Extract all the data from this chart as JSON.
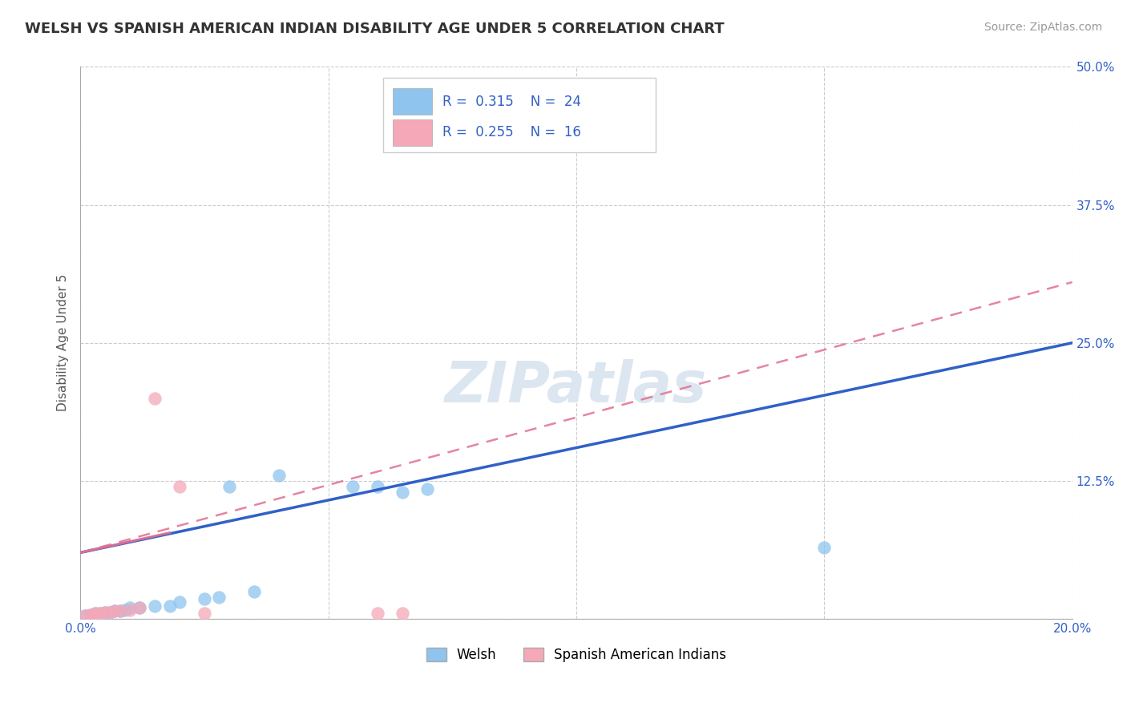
{
  "title": "WELSH VS SPANISH AMERICAN INDIAN DISABILITY AGE UNDER 5 CORRELATION CHART",
  "source": "Source: ZipAtlas.com",
  "ylabel_label": "Disability Age Under 5",
  "xlim": [
    0.0,
    0.2
  ],
  "ylim": [
    0.0,
    0.5
  ],
  "xticks": [
    0.0,
    0.05,
    0.1,
    0.15,
    0.2
  ],
  "xtick_labels": [
    "0.0%",
    "",
    "",
    "",
    "20.0%"
  ],
  "ytick_positions": [
    0.0,
    0.125,
    0.25,
    0.375,
    0.5
  ],
  "ytick_labels": [
    "",
    "12.5%",
    "25.0%",
    "37.5%",
    "50.0%"
  ],
  "grid_color": "#cccccc",
  "background_color": "#ffffff",
  "watermark": "ZIPatlas",
  "welsh_R": 0.315,
  "welsh_N": 24,
  "spanish_R": 0.255,
  "spanish_N": 16,
  "welsh_color": "#8ec4ee",
  "spanish_color": "#f4a8b8",
  "welsh_line_color": "#3060c8",
  "spanish_line_color": "#e07090",
  "welsh_scatter_x": [
    0.001,
    0.002,
    0.003,
    0.004,
    0.005,
    0.006,
    0.007,
    0.008,
    0.009,
    0.01,
    0.012,
    0.015,
    0.018,
    0.02,
    0.025,
    0.028,
    0.03,
    0.035,
    0.04,
    0.055,
    0.06,
    0.065,
    0.07,
    0.15
  ],
  "welsh_scatter_y": [
    0.003,
    0.004,
    0.005,
    0.005,
    0.006,
    0.006,
    0.007,
    0.007,
    0.008,
    0.01,
    0.01,
    0.012,
    0.012,
    0.015,
    0.018,
    0.02,
    0.12,
    0.025,
    0.13,
    0.12,
    0.12,
    0.115,
    0.118,
    0.065
  ],
  "spanish_scatter_x": [
    0.001,
    0.002,
    0.003,
    0.003,
    0.004,
    0.005,
    0.006,
    0.007,
    0.008,
    0.01,
    0.012,
    0.015,
    0.02,
    0.025,
    0.06,
    0.065
  ],
  "spanish_scatter_y": [
    0.003,
    0.004,
    0.004,
    0.005,
    0.005,
    0.006,
    0.006,
    0.007,
    0.007,
    0.008,
    0.01,
    0.2,
    0.12,
    0.005,
    0.005,
    0.005
  ],
  "welsh_trend_x": [
    0.0,
    0.2
  ],
  "welsh_trend_y": [
    0.06,
    0.25
  ],
  "spanish_trend_x": [
    0.0,
    0.2
  ],
  "spanish_trend_y": [
    0.06,
    0.305
  ],
  "spanish_short_line_x": [
    0.0,
    0.018
  ],
  "spanish_short_line_y": [
    0.06,
    0.078
  ],
  "legend_labels": [
    "Welsh",
    "Spanish American Indians"
  ],
  "title_fontsize": 13,
  "axis_label_fontsize": 11,
  "tick_fontsize": 11,
  "legend_fontsize": 12,
  "source_fontsize": 10,
  "title_color": "#333333",
  "tick_color_x": "#3060c8",
  "tick_color_y": "#3060c8",
  "watermark_color": "#dce6f0",
  "watermark_fontsize": 52
}
